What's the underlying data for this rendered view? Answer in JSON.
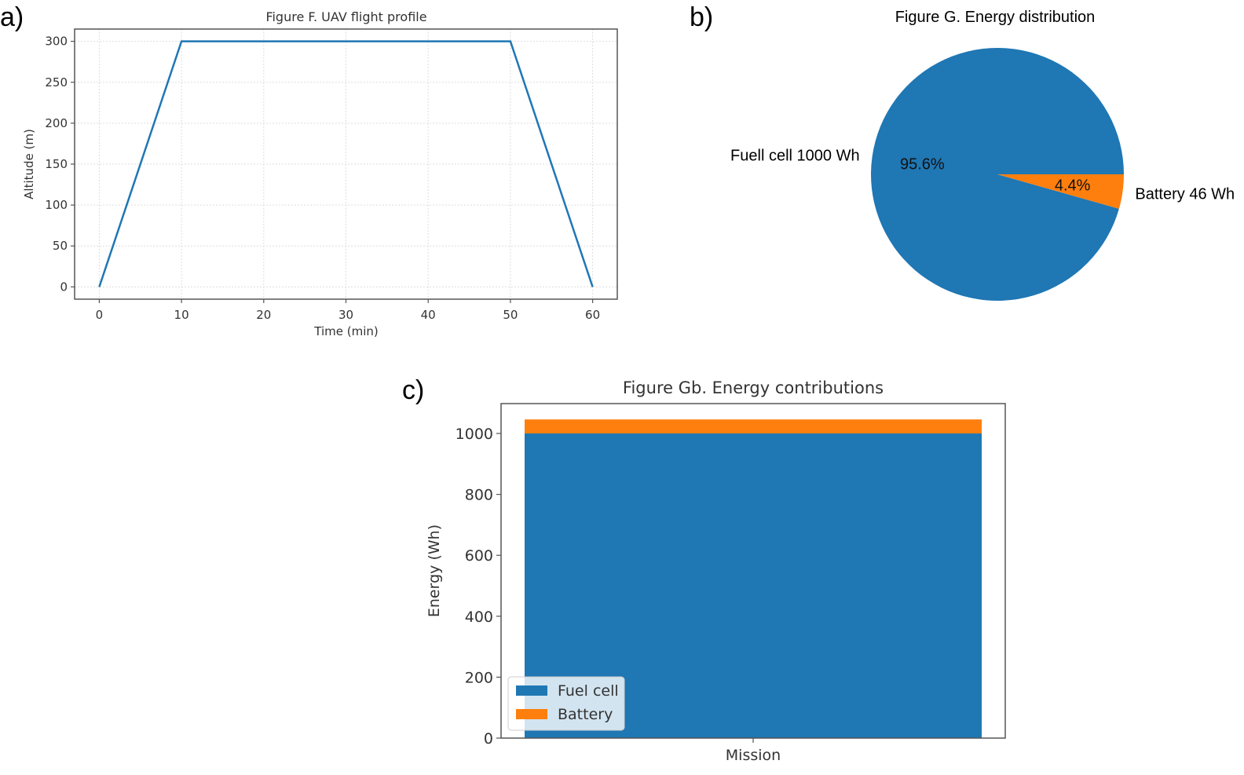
{
  "panels": {
    "a": "a)",
    "b": "b)",
    "c": "c)"
  },
  "colors": {
    "blue": "#1f77b4",
    "orange": "#ff7f0e",
    "axis": "#555555",
    "grid": "#dddddd",
    "text": "#333333"
  },
  "chart_data": [
    {
      "id": "a",
      "type": "line",
      "title": "Figure F. UAV flight profile",
      "xlabel": "Time (min)",
      "ylabel": "Altitude (m)",
      "x": [
        0,
        10,
        50,
        60
      ],
      "series": [
        {
          "name": "Altitude",
          "values": [
            0,
            300,
            300,
            0
          ]
        }
      ],
      "xlim": [
        -3,
        63
      ],
      "ylim": [
        -15,
        315
      ],
      "xticks": [
        0,
        10,
        20,
        30,
        40,
        50,
        60
      ],
      "yticks": [
        0,
        50,
        100,
        150,
        200,
        250,
        300
      ],
      "xtick_labels": [
        "0",
        "10",
        "20",
        "30",
        "40",
        "50",
        "60"
      ],
      "ytick_labels": [
        "0",
        "50",
        "100",
        "150",
        "200",
        "250",
        "300"
      ],
      "grid": true
    },
    {
      "id": "b",
      "type": "pie",
      "title": "Figure G. Energy distribution",
      "labels": [
        "Fuell cell 1000 Wh",
        "Battery 46 Wh"
      ],
      "values": [
        1000,
        46
      ],
      "percent_labels": [
        "95.6%",
        "4.4%"
      ],
      "start_angle_deg": 0
    },
    {
      "id": "c",
      "type": "bar",
      "stacked": true,
      "title": "Figure Gb. Energy contributions",
      "xlabel": "",
      "ylabel": "Energy (Wh)",
      "categories": [
        "Mission"
      ],
      "series": [
        {
          "name": "Fuel cell",
          "values": [
            1000
          ]
        },
        {
          "name": "Battery",
          "values": [
            46
          ]
        }
      ],
      "ylim": [
        0,
        1098
      ],
      "yticks": [
        0,
        200,
        400,
        600,
        800,
        1000
      ],
      "ytick_labels": [
        "0",
        "200",
        "400",
        "600",
        "800",
        "1000"
      ],
      "legend": [
        "Fuel cell",
        "Battery"
      ],
      "legend_position": "lower-left",
      "grid": false
    }
  ]
}
